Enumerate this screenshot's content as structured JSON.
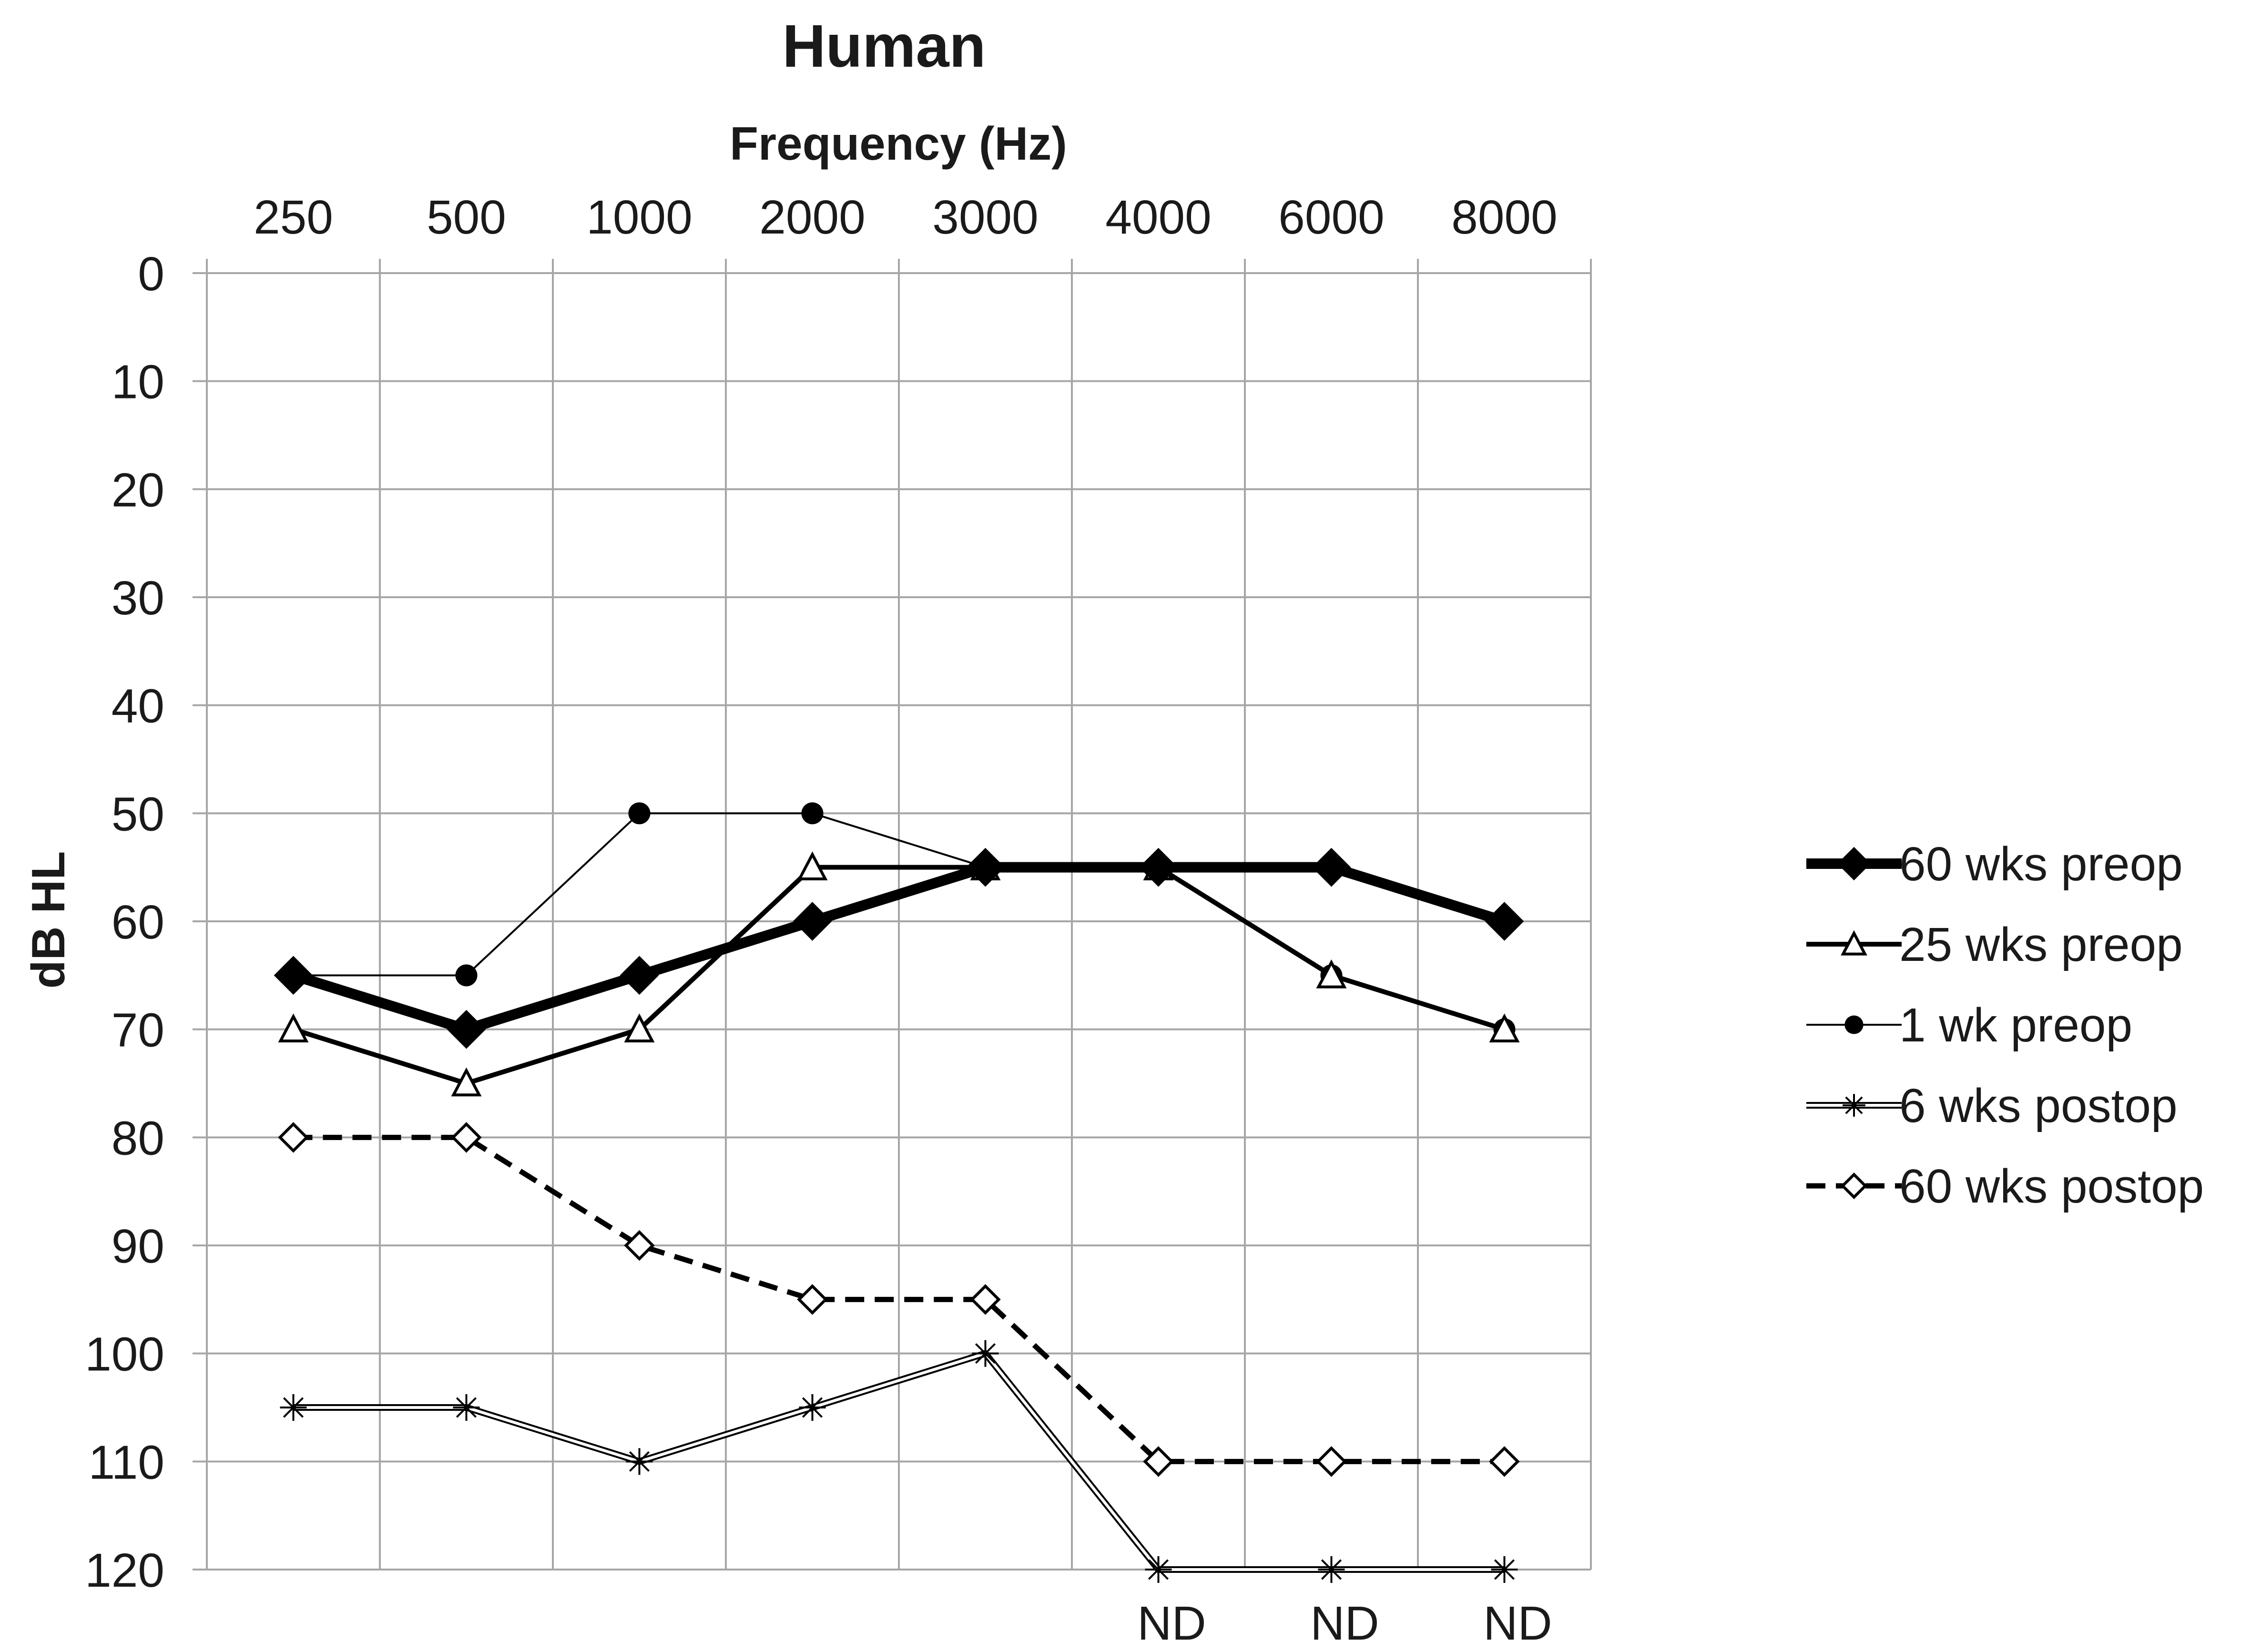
{
  "chart_data": {
    "type": "line",
    "title": "Human",
    "xlabel": "Frequency (Hz)",
    "ylabel": "dB HL",
    "categories": [
      "250",
      "500",
      "1000",
      "2000",
      "3000",
      "4000",
      "6000",
      "8000"
    ],
    "y_ticks": [
      "0",
      "10",
      "20",
      "30",
      "40",
      "50",
      "60",
      "70",
      "80",
      "90",
      "100",
      "110",
      "120"
    ],
    "ylim": [
      0,
      120
    ],
    "y_inverted": true,
    "grid": true,
    "legend_position": "right",
    "series": [
      {
        "name": "60 wks preop",
        "marker": "filled-diamond",
        "line": "thick-solid",
        "color": "#000000",
        "values": [
          65,
          70,
          65,
          60,
          55,
          55,
          55,
          60
        ]
      },
      {
        "name": "25 wks preop",
        "marker": "open-triangle",
        "line": "medium-solid",
        "color": "#000000",
        "values": [
          70,
          75,
          70,
          55,
          55,
          55,
          65,
          70
        ]
      },
      {
        "name": "1 wk preop",
        "marker": "filled-circle",
        "line": "thin-solid",
        "color": "#000000",
        "values": [
          65,
          65,
          50,
          50,
          55,
          55,
          65,
          70
        ]
      },
      {
        "name": "6 wks postop",
        "marker": "asterisk",
        "line": "double",
        "color": "#000000",
        "values": [
          105,
          105,
          110,
          105,
          100,
          120,
          120,
          120
        ]
      },
      {
        "name": "60 wks postop",
        "marker": "open-diamond",
        "line": "dashed",
        "color": "#000000",
        "values": [
          80,
          80,
          90,
          95,
          95,
          110,
          110,
          110
        ]
      }
    ],
    "annotations": [
      {
        "category": "4000",
        "text": "ND"
      },
      {
        "category": "6000",
        "text": "ND"
      },
      {
        "category": "8000",
        "text": "ND"
      }
    ]
  }
}
